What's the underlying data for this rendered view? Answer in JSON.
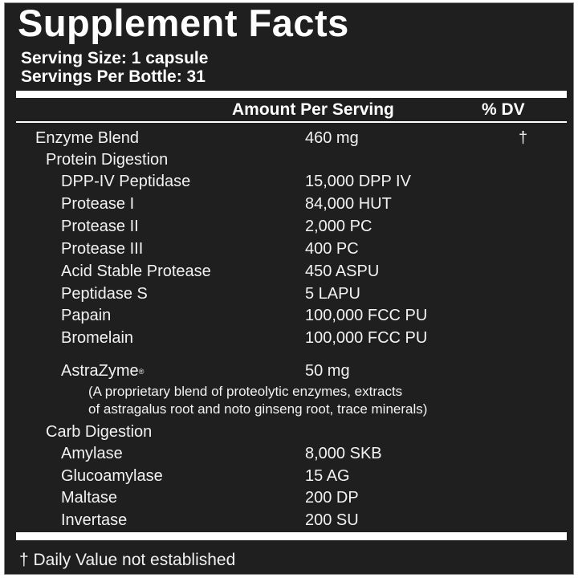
{
  "title": "Supplement Facts",
  "serving_size": "Serving Size: 1 capsule",
  "servings_per_container": "Servings Per Bottle: 31",
  "header": {
    "amount": "Amount Per Serving",
    "dv": "% DV"
  },
  "rows": [
    {
      "name": "Enzyme Blend",
      "amount": "460 mg",
      "dv": "†",
      "level": 0
    },
    {
      "name": "Protein Digestion",
      "amount": "",
      "dv": "",
      "level": 1
    },
    {
      "name": "DPP-IV Peptidase",
      "amount": "15,000 DPP IV",
      "dv": "",
      "level": 2
    },
    {
      "name": "Protease I",
      "amount": "84,000 HUT",
      "dv": "",
      "level": 2
    },
    {
      "name": "Protease II",
      "amount": "2,000 PC",
      "dv": "",
      "level": 2
    },
    {
      "name": "Protease III",
      "amount": "400 PC",
      "dv": "",
      "level": 2
    },
    {
      "name": "Acid Stable Protease",
      "amount": "450 ASPU",
      "dv": "",
      "level": 2
    },
    {
      "name": "Peptidase S",
      "amount": "5 LAPU",
      "dv": "",
      "level": 2
    },
    {
      "name": "Papain",
      "amount": "100,000 FCC PU",
      "dv": "",
      "level": 2
    },
    {
      "name": "Bromelain",
      "amount": "100,000 FCC PU",
      "dv": "",
      "level": 2
    },
    {
      "name": "AstraZyme",
      "sup": "®",
      "amount": "50 mg",
      "dv": "",
      "level": 2
    },
    {
      "name": "Carb Digestion",
      "amount": "",
      "dv": "",
      "level": 1
    },
    {
      "name": "Amylase",
      "amount": "8,000 SKB",
      "dv": "",
      "level": 2
    },
    {
      "name": "Glucoamylase",
      "amount": "15 AG",
      "dv": "",
      "level": 2
    },
    {
      "name": "Maltase",
      "amount": "200 DP",
      "dv": "",
      "level": 2
    },
    {
      "name": "Invertase",
      "amount": "200 SU",
      "dv": "",
      "level": 2
    }
  ],
  "astrazyme_note": [
    "(A proprietary blend of proteolytic enzymes, extracts",
    "of astragalus root and noto ginseng root, trace minerals)"
  ],
  "footnote": "† Daily Value not established"
}
